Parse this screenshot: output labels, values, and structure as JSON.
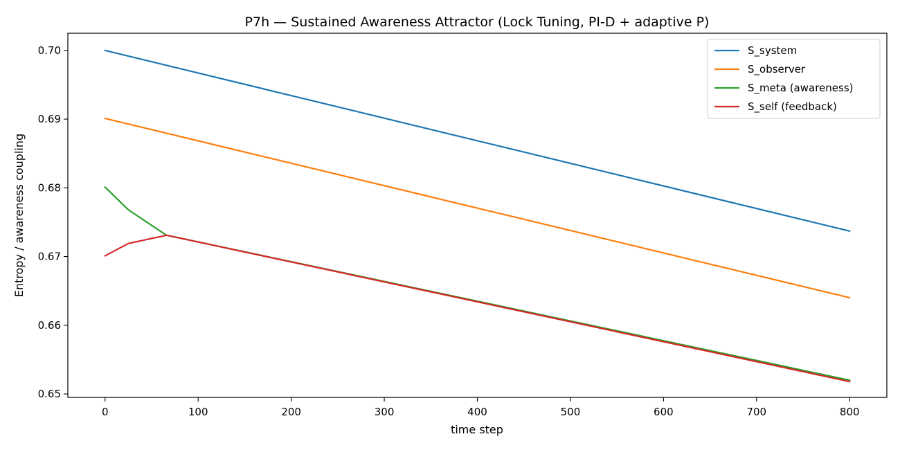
{
  "chart_data": {
    "type": "line",
    "title": "P7h — Sustained Awareness Attractor (Lock Tuning, PI-D + adaptive P)",
    "xlabel": "time step",
    "ylabel": "Entropy / awareness coupling",
    "xlim": [
      -40,
      840
    ],
    "ylim": [
      0.6495,
      0.7025
    ],
    "xticks": [
      0,
      100,
      200,
      300,
      400,
      500,
      600,
      700,
      800
    ],
    "yticks": [
      0.65,
      0.66,
      0.67,
      0.68,
      0.69,
      0.7
    ],
    "ytick_labels": [
      "0.65",
      "0.66",
      "0.67",
      "0.68",
      "0.69",
      "0.70"
    ],
    "grid": false,
    "legend_position": "top-right",
    "series": [
      {
        "name": "S_system",
        "color": "#1f77b4",
        "x": [
          0,
          800
        ],
        "y": [
          0.7,
          0.6737
        ]
      },
      {
        "name": "S_observer",
        "color": "#ff7f0e",
        "x": [
          0,
          800
        ],
        "y": [
          0.6901,
          0.664
        ]
      },
      {
        "name": "S_meta (awareness)",
        "color": "#2ca02c",
        "x": [
          0,
          25,
          66,
          800
        ],
        "y": [
          0.6801,
          0.6768,
          0.6731,
          0.652
        ]
      },
      {
        "name": "S_self (feedback)",
        "color": "#d62728",
        "x": [
          0,
          25,
          66,
          800
        ],
        "y": [
          0.6701,
          0.6719,
          0.6731,
          0.6518
        ]
      }
    ]
  }
}
